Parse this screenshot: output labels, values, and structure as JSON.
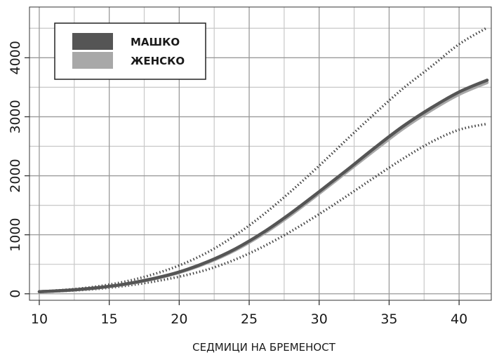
{
  "chart_data": {
    "type": "line",
    "title": "",
    "xlabel": "СЕДМИЦИ НА БРЕМЕНОСТ",
    "ylabel": "",
    "xlim": [
      9.3,
      42.3
    ],
    "ylim": [
      -110,
      4860
    ],
    "x_ticks": [
      10,
      15,
      20,
      25,
      30,
      35,
      40
    ],
    "y_ticks": [
      0,
      1000,
      2000,
      3000,
      4000
    ],
    "x_tick_labels": [
      "10",
      "15",
      "20",
      "25",
      "30",
      "35",
      "40"
    ],
    "y_tick_labels": [
      "0",
      "1000",
      "2000",
      "3000",
      "4000"
    ],
    "grid": true,
    "legend_position": "top-left",
    "x": [
      10,
      12,
      14,
      16,
      18,
      20,
      22,
      24,
      26,
      28,
      30,
      32,
      34,
      36,
      38,
      40,
      42
    ],
    "series": [
      {
        "name": "МАШКО",
        "color": "#555555",
        "style": "solid",
        "values": [
          35,
          60,
          100,
          160,
          250,
          370,
          540,
          760,
          1040,
          1370,
          1730,
          2100,
          2480,
          2840,
          3150,
          3420,
          3620
        ]
      },
      {
        "name": "ЖЕНСКО",
        "color": "#a8a8a8",
        "style": "solid",
        "values": [
          35,
          58,
          95,
          155,
          242,
          360,
          525,
          740,
          1015,
          1340,
          1700,
          2070,
          2440,
          2800,
          3110,
          3380,
          3580
        ]
      }
    ],
    "bands": [
      {
        "color": "#444444",
        "style": "dotted",
        "values": [
          40,
          70,
          120,
          200,
          320,
          480,
          700,
          990,
          1340,
          1740,
          2170,
          2620,
          3060,
          3480,
          3850,
          4230,
          4510
        ]
      },
      {
        "color": "#444444",
        "style": "dotted",
        "values": [
          30,
          50,
          80,
          130,
          200,
          290,
          410,
          580,
          800,
          1060,
          1350,
          1660,
          1980,
          2290,
          2570,
          2780,
          2880
        ]
      }
    ]
  }
}
